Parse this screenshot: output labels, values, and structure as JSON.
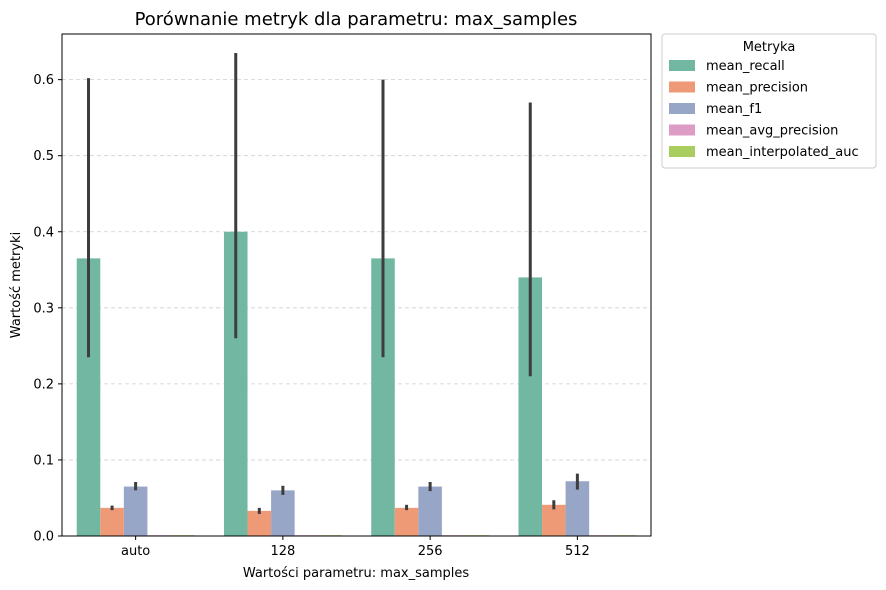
{
  "chart_data": {
    "type": "bar",
    "title": "Porównanie metryk dla parametru: max_samples",
    "xlabel": "Wartości parametru: max_samples",
    "ylabel": "Wartość metryki",
    "categories": [
      "auto",
      "128",
      "256",
      "512"
    ],
    "ylim": [
      0,
      0.66
    ],
    "yticks": [
      "0.0",
      "0.1",
      "0.2",
      "0.3",
      "0.4",
      "0.5",
      "0.6"
    ],
    "grid": true,
    "legend": {
      "title": "Metryka",
      "placement": "outside-top-right"
    },
    "series": [
      {
        "name": "mean_recall",
        "color": "#72b7a1",
        "values": [
          0.365,
          0.4,
          0.365,
          0.34
        ],
        "err_low": [
          0.235,
          0.26,
          0.235,
          0.21
        ],
        "err_high": [
          0.602,
          0.635,
          0.6,
          0.57
        ]
      },
      {
        "name": "mean_precision",
        "color": "#ee9a77",
        "values": [
          0.037,
          0.033,
          0.037,
          0.041
        ],
        "err_low": [
          0.034,
          0.029,
          0.034,
          0.035
        ],
        "err_high": [
          0.04,
          0.037,
          0.041,
          0.047
        ]
      },
      {
        "name": "mean_f1",
        "color": "#97a6c7",
        "values": [
          0.065,
          0.06,
          0.065,
          0.072
        ],
        "err_low": [
          0.06,
          0.054,
          0.059,
          0.061
        ],
        "err_high": [
          0.071,
          0.066,
          0.071,
          0.082
        ]
      },
      {
        "name": "mean_avg_precision",
        "color": "#dd9cc4",
        "values": [
          0.001,
          0.001,
          0.001,
          0.001
        ]
      },
      {
        "name": "mean_interpolated_auc",
        "color": "#a9cd5f",
        "values": [
          0.001,
          0.001,
          0.001,
          0.001
        ]
      }
    ]
  }
}
